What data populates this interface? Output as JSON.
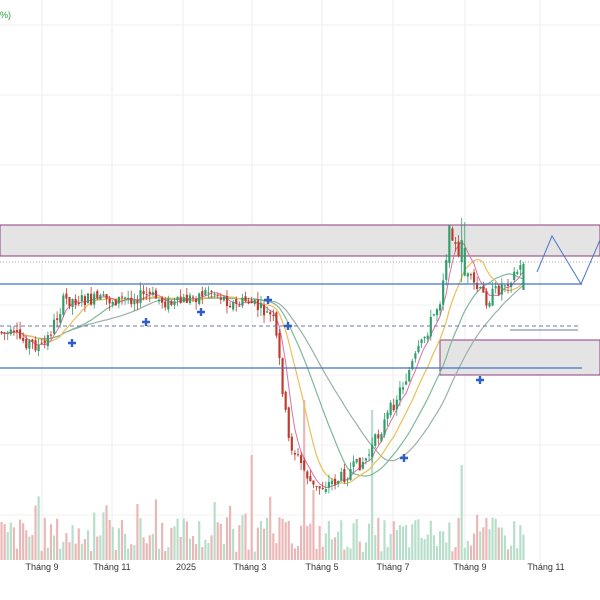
{
  "corner_text": "%)",
  "colors": {
    "up": "#2e9e6a",
    "down": "#c0392b",
    "ma_fast": "#e06fa0",
    "ma_mid": "#e8c05a",
    "ma_slow": "#7fb89a",
    "ma_slower": "#9bb0a8",
    "zone_border": "#8e3b7c",
    "zone_fill": "#e4e4e4",
    "hline": "#4472c4",
    "marker": "#2f5fc4",
    "volume": "#e8a9a9",
    "volume_up": "#a9d8bf",
    "projection": "#4a78c8"
  },
  "chart_data": {
    "type": "candlestick",
    "title": "",
    "xlabel": "",
    "ylabel": "",
    "grid": true,
    "x_tick_labels": [
      "Tháng 9",
      "Tháng 11",
      "2025",
      "Tháng 3",
      "Tháng 5",
      "Tháng 7",
      "Tháng 9",
      "Tháng 11"
    ],
    "price_trend_keypoints": [
      {
        "t": 0,
        "close": 332
      },
      {
        "t": 0.08,
        "close": 348
      },
      {
        "t": 0.12,
        "close": 300
      },
      {
        "t": 0.22,
        "close": 300
      },
      {
        "t": 0.28,
        "close": 295
      },
      {
        "t": 0.33,
        "close": 305
      },
      {
        "t": 0.4,
        "close": 290
      },
      {
        "t": 0.45,
        "close": 306
      },
      {
        "t": 0.47,
        "close": 300
      },
      {
        "t": 0.52,
        "close": 318
      },
      {
        "t": 0.53,
        "close": 350
      },
      {
        "t": 0.55,
        "close": 440
      },
      {
        "t": 0.6,
        "close": 490
      },
      {
        "t": 0.65,
        "close": 478
      },
      {
        "t": 0.7,
        "close": 458
      },
      {
        "t": 0.75,
        "close": 405
      },
      {
        "t": 0.8,
        "close": 350
      },
      {
        "t": 0.84,
        "close": 300
      },
      {
        "t": 0.86,
        "close": 225
      },
      {
        "t": 0.88,
        "close": 270
      },
      {
        "t": 0.93,
        "close": 300
      },
      {
        "t": 0.96,
        "close": 285
      },
      {
        "t": 1.0,
        "close": 265
      }
    ],
    "horizontal_zones": [
      {
        "name": "upper-zone",
        "y_top": 225,
        "y_bottom": 256
      },
      {
        "name": "lower-zone",
        "y_top": 340,
        "y_bottom": 375
      }
    ],
    "horizontal_lines": [
      {
        "name": "resistance",
        "y": 284
      },
      {
        "name": "support",
        "y": 368
      },
      {
        "name": "dashed-level",
        "y": 326
      }
    ],
    "projection_path": [
      [
        537,
        272
      ],
      [
        552,
        236
      ],
      [
        581,
        284
      ],
      [
        600,
        240
      ]
    ]
  }
}
